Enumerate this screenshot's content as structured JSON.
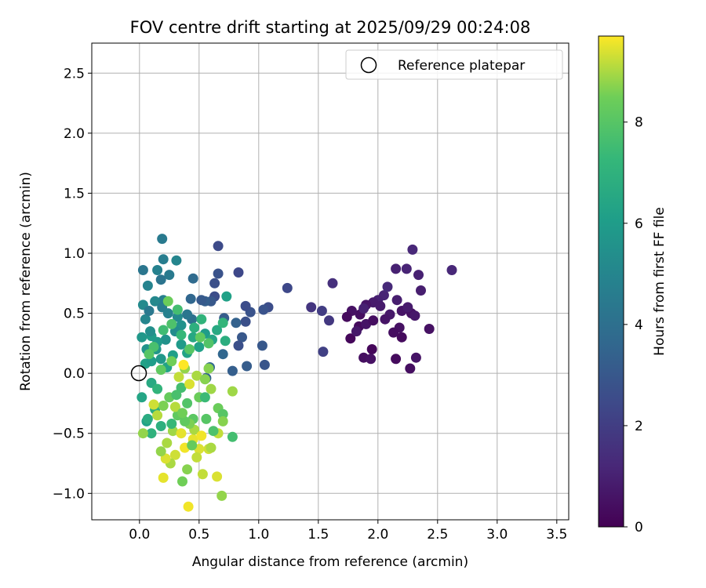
{
  "chart_data": {
    "type": "scatter",
    "title": "FOV centre drift starting at 2025/09/29 00:24:08",
    "xlabel": "Angular distance from reference (arcmin)",
    "ylabel": "Rotation from reference (arcmin)",
    "xlim": [
      -0.4,
      3.6
    ],
    "ylim": [
      -1.22,
      2.75
    ],
    "xticks": [
      "0.0",
      "0.5",
      "1.0",
      "1.5",
      "2.0",
      "2.5",
      "3.0",
      "3.5"
    ],
    "yticks": [
      "−1.0",
      "−0.5",
      "0.0",
      "0.5",
      "1.0",
      "1.5",
      "2.0",
      "2.5"
    ],
    "grid": true,
    "legend": {
      "position": "top-right",
      "entries": [
        "Reference platepar"
      ]
    },
    "reference_point": {
      "x": 0.0,
      "y": 0.0
    },
    "colorbar": {
      "label": "Hours from first FF file",
      "colormap": "viridis",
      "range": [
        0,
        9.7
      ],
      "ticks": [
        "0",
        "2",
        "4",
        "6",
        "8"
      ]
    },
    "points": [
      [
        1.77,
        0.29,
        0.2
      ],
      [
        1.84,
        0.39,
        0.3
      ],
      [
        1.88,
        0.13,
        0.4
      ],
      [
        1.95,
        0.2,
        0.2
      ],
      [
        1.94,
        0.12,
        0.5
      ],
      [
        2.15,
        0.12,
        0.3
      ],
      [
        2.27,
        0.04,
        0.4
      ],
      [
        2.32,
        0.13,
        0.6
      ],
      [
        2.43,
        0.37,
        0.5
      ],
      [
        2.2,
        0.3,
        0.3
      ],
      [
        2.28,
        0.5,
        0.5
      ],
      [
        2.36,
        0.69,
        0.9
      ],
      [
        2.34,
        0.82,
        1.0
      ],
      [
        2.29,
        1.03,
        1.2
      ],
      [
        2.24,
        0.87,
        1.1
      ],
      [
        2.15,
        0.87,
        1.0
      ],
      [
        2.62,
        0.86,
        1.2
      ],
      [
        2.05,
        0.65,
        1.1
      ],
      [
        2.08,
        0.72,
        1.3
      ],
      [
        2.0,
        0.61,
        1.0
      ],
      [
        1.96,
        0.59,
        0.8
      ],
      [
        1.9,
        0.57,
        0.6
      ],
      [
        1.85,
        0.49,
        0.4
      ],
      [
        1.78,
        0.52,
        0.5
      ],
      [
        1.74,
        0.47,
        0.3
      ],
      [
        1.82,
        0.35,
        0.7
      ],
      [
        1.9,
        0.41,
        0.6
      ],
      [
        1.96,
        0.44,
        0.4
      ],
      [
        2.02,
        0.56,
        0.8
      ],
      [
        2.1,
        0.49,
        0.7
      ],
      [
        2.16,
        0.61,
        0.9
      ],
      [
        2.2,
        0.52,
        0.6
      ],
      [
        2.25,
        0.55,
        0.8
      ],
      [
        2.31,
        0.48,
        0.7
      ],
      [
        2.18,
        0.38,
        0.5
      ],
      [
        2.13,
        0.34,
        0.4
      ],
      [
        2.06,
        0.45,
        0.6
      ],
      [
        1.88,
        0.54,
        1.0
      ],
      [
        1.62,
        0.75,
        1.5
      ],
      [
        1.53,
        0.52,
        2.0
      ],
      [
        1.59,
        0.44,
        1.8
      ],
      [
        1.44,
        0.55,
        1.7
      ],
      [
        1.54,
        0.18,
        2.1
      ],
      [
        1.24,
        0.71,
        2.4
      ],
      [
        1.08,
        0.55,
        2.6
      ],
      [
        1.04,
        0.53,
        2.8
      ],
      [
        1.03,
        0.23,
        3.0
      ],
      [
        1.05,
        0.07,
        2.9
      ],
      [
        0.93,
        0.51,
        2.8
      ],
      [
        0.89,
        0.56,
        2.6
      ],
      [
        0.89,
        0.43,
        2.7
      ],
      [
        0.86,
        0.3,
        3.0
      ],
      [
        0.9,
        0.06,
        3.2
      ],
      [
        0.83,
        0.84,
        2.4
      ],
      [
        0.83,
        0.23,
        2.7
      ],
      [
        0.78,
        0.02,
        3.3
      ],
      [
        0.66,
        1.06,
        2.5
      ],
      [
        0.66,
        0.83,
        2.8
      ],
      [
        0.63,
        0.64,
        2.6
      ],
      [
        0.63,
        0.75,
        2.7
      ],
      [
        0.6,
        0.6,
        3.0
      ],
      [
        0.55,
        0.6,
        3.3
      ],
      [
        0.52,
        0.61,
        3.1
      ],
      [
        0.71,
        0.46,
        3.2
      ],
      [
        0.81,
        0.42,
        3.4
      ],
      [
        0.7,
        0.16,
        3.6
      ],
      [
        0.59,
        0.05,
        3.7
      ],
      [
        0.56,
        -0.04,
        3.5
      ],
      [
        0.45,
        0.79,
        3.8
      ],
      [
        0.43,
        0.62,
        3.6
      ],
      [
        0.44,
        0.45,
        4.0
      ],
      [
        0.4,
        0.49,
        4.3
      ],
      [
        0.19,
        1.12,
        4.5
      ],
      [
        0.2,
        0.95,
        4.6
      ],
      [
        0.15,
        0.86,
        4.8
      ],
      [
        0.25,
        0.82,
        4.5
      ],
      [
        0.31,
        0.94,
        5.0
      ],
      [
        0.03,
        0.86,
        4.3
      ],
      [
        0.07,
        0.73,
        4.9
      ],
      [
        0.18,
        0.78,
        4.2
      ],
      [
        0.2,
        0.61,
        4.7
      ],
      [
        0.13,
        0.6,
        5.1
      ],
      [
        0.03,
        0.57,
        5.2
      ],
      [
        0.05,
        0.45,
        5.0
      ],
      [
        0.08,
        0.52,
        4.4
      ],
      [
        0.19,
        0.55,
        4.6
      ],
      [
        0.24,
        0.5,
        4.8
      ],
      [
        0.32,
        0.47,
        5.2
      ],
      [
        0.35,
        0.4,
        5.5
      ],
      [
        0.3,
        0.35,
        5.3
      ],
      [
        0.22,
        0.28,
        5.5
      ],
      [
        0.15,
        0.26,
        5.9
      ],
      [
        0.1,
        0.31,
        6.0
      ],
      [
        0.06,
        0.2,
        5.6
      ],
      [
        0.02,
        0.3,
        5.8
      ],
      [
        0.09,
        0.35,
        5.4
      ],
      [
        0.14,
        0.2,
        5.7
      ],
      [
        0.05,
        0.08,
        6.2
      ],
      [
        0.1,
        0.1,
        6.0
      ],
      [
        0.18,
        0.12,
        5.8
      ],
      [
        0.23,
        0.05,
        6.3
      ],
      [
        0.28,
        0.15,
        6.1
      ],
      [
        0.35,
        0.24,
        5.9
      ],
      [
        0.4,
        0.17,
        6.3
      ],
      [
        0.45,
        0.3,
        6.5
      ],
      [
        0.5,
        0.22,
        6.2
      ],
      [
        0.55,
        0.33,
        6.0
      ],
      [
        0.61,
        0.28,
        6.4
      ],
      [
        0.65,
        0.36,
        6.6
      ],
      [
        0.72,
        0.27,
        6.8
      ],
      [
        0.73,
        0.64,
        6.2
      ],
      [
        0.7,
        0.42,
        7.2
      ],
      [
        0.52,
        0.45,
        7.1
      ],
      [
        0.46,
        0.38,
        6.9
      ],
      [
        0.35,
        0.32,
        7.3
      ],
      [
        0.32,
        0.53,
        7.6
      ],
      [
        0.27,
        0.41,
        7.8
      ],
      [
        0.2,
        0.36,
        7.5
      ],
      [
        0.12,
        0.22,
        7.7
      ],
      [
        0.08,
        0.16,
        8.0
      ],
      [
        0.18,
        0.03,
        8.2
      ],
      [
        0.27,
        0.1,
        8.5
      ],
      [
        0.38,
        0.04,
        8.8
      ],
      [
        0.48,
        -0.02,
        9.0
      ],
      [
        0.58,
        0.04,
        8.7
      ],
      [
        0.58,
        0.25,
        7.9
      ],
      [
        0.51,
        0.3,
        8.2
      ],
      [
        0.42,
        0.2,
        8.0
      ],
      [
        0.24,
        0.6,
        8.4
      ],
      [
        0.1,
        -0.08,
        6.6
      ],
      [
        0.02,
        -0.2,
        6.4
      ],
      [
        0.06,
        -0.4,
        6.2
      ],
      [
        0.13,
        -0.3,
        6.8
      ],
      [
        0.18,
        -0.44,
        6.9
      ],
      [
        0.1,
        -0.5,
        7.0
      ],
      [
        0.03,
        -0.5,
        8.8
      ],
      [
        0.2,
        -0.27,
        8.6
      ],
      [
        0.15,
        -0.35,
        9.1
      ],
      [
        0.12,
        -0.26,
        9.3
      ],
      [
        0.23,
        -0.58,
        9.0
      ],
      [
        0.28,
        -0.48,
        8.9
      ],
      [
        0.32,
        -0.35,
        8.2
      ],
      [
        0.25,
        -0.2,
        8.3
      ],
      [
        0.35,
        -0.12,
        7.6
      ],
      [
        0.4,
        -0.25,
        7.9
      ],
      [
        0.45,
        -0.38,
        8.1
      ],
      [
        0.5,
        -0.2,
        8.4
      ],
      [
        0.55,
        -0.05,
        8.7
      ],
      [
        0.6,
        -0.13,
        8.9
      ],
      [
        0.66,
        -0.29,
        8.4
      ],
      [
        0.7,
        -0.34,
        8.0
      ],
      [
        0.7,
        -0.4,
        8.7
      ],
      [
        0.78,
        -0.53,
        7.6
      ],
      [
        0.78,
        -0.15,
        8.9
      ],
      [
        0.66,
        -0.5,
        9.2
      ],
      [
        0.58,
        -0.63,
        9.3
      ],
      [
        0.5,
        -0.63,
        9.4
      ],
      [
        0.45,
        -0.55,
        9.5
      ],
      [
        0.38,
        -0.62,
        9.6
      ],
      [
        0.35,
        -0.5,
        9.5
      ],
      [
        0.3,
        -0.68,
        9.3
      ],
      [
        0.26,
        -0.75,
        9.0
      ],
      [
        0.22,
        -0.71,
        9.4
      ],
      [
        0.18,
        -0.65,
        8.8
      ],
      [
        0.2,
        -0.87,
        9.5
      ],
      [
        0.36,
        -0.9,
        8.5
      ],
      [
        0.4,
        -0.8,
        8.7
      ],
      [
        0.53,
        -0.84,
        9.2
      ],
      [
        0.65,
        -0.86,
        9.4
      ],
      [
        0.69,
        -1.02,
        8.8
      ],
      [
        0.41,
        -1.11,
        9.6
      ],
      [
        0.46,
        -0.47,
        9.0
      ],
      [
        0.42,
        -0.42,
        8.6
      ],
      [
        0.3,
        -0.28,
        9.1
      ],
      [
        0.33,
        -0.03,
        9.2
      ],
      [
        0.37,
        0.07,
        9.7
      ],
      [
        0.42,
        -0.09,
        9.4
      ],
      [
        0.56,
        -0.38,
        8.0
      ],
      [
        0.6,
        -0.62,
        9.0
      ],
      [
        0.52,
        -0.52,
        9.6
      ],
      [
        0.48,
        -0.7,
        9.2
      ],
      [
        0.27,
        -0.42,
        7.3
      ],
      [
        0.38,
        -0.4,
        8.2
      ],
      [
        0.55,
        -0.2,
        7.4
      ],
      [
        0.62,
        -0.48,
        7.8
      ],
      [
        0.07,
        -0.38,
        6.7
      ],
      [
        0.15,
        -0.13,
        7.1
      ],
      [
        0.31,
        -0.18,
        7.7
      ],
      [
        0.44,
        -0.6,
        8.3
      ],
      [
        0.36,
        -0.33,
        8.5
      ]
    ]
  }
}
